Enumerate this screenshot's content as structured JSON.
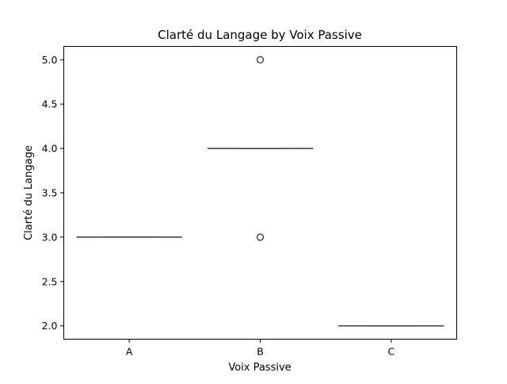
{
  "chart_data": {
    "type": "box",
    "title": "Clarté du Langage by Voix Passive",
    "xlabel": "Voix Passive",
    "ylabel": "Clarté du Langage",
    "categories": [
      "A",
      "B",
      "C"
    ],
    "ylim": [
      1.85,
      5.15
    ],
    "yticks": [
      2.0,
      2.5,
      3.0,
      3.5,
      4.0,
      4.5,
      5.0
    ],
    "ytick_labels": [
      "2.0",
      "2.5",
      "3.0",
      "3.5",
      "4.0",
      "4.5",
      "5.0"
    ],
    "grid": false,
    "boxes": [
      {
        "category": "A",
        "min": 3.0,
        "q1": 3.0,
        "median": 3.0,
        "q3": 3.0,
        "max": 3.0,
        "outliers": []
      },
      {
        "category": "B",
        "min": 4.0,
        "q1": 4.0,
        "median": 4.0,
        "q3": 4.0,
        "max": 4.0,
        "outliers": [
          5.0,
          3.0
        ]
      },
      {
        "category": "C",
        "min": 2.0,
        "q1": 2.0,
        "median": 2.0,
        "q3": 2.0,
        "max": 2.0,
        "outliers": []
      }
    ],
    "colors": {
      "box_line": "#3f3f3f",
      "axes": "#000000"
    }
  }
}
